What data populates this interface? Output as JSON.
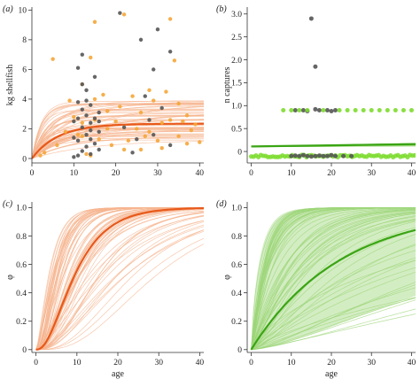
{
  "colors": {
    "orange": "#e8591a",
    "orange_light": "#f6b48f",
    "orange_point": "#f5a638",
    "green": "#3aa514",
    "green_light": "#9dd67a",
    "green_point": "#7ddc2e",
    "gray_point": "#555555"
  },
  "chart_data": [
    {
      "panel": "(a)",
      "type": "scatter",
      "xlabel": "",
      "ylabel": "kg shellfish",
      "xlim": [
        0,
        41
      ],
      "ylim": [
        -0.3,
        10.2
      ],
      "xticks": [
        0,
        10,
        20,
        30,
        40
      ],
      "yticks": [
        0,
        2,
        4,
        6,
        8,
        10
      ],
      "xtick_labels": [
        "0",
        "10",
        "20",
        "30",
        "40"
      ],
      "ytick_labels": [
        "0",
        "2",
        "4",
        "6",
        "8",
        "10"
      ],
      "curve": {
        "family": "saturating",
        "asymptote": 2.35,
        "rate": 0.16,
        "asym_range": [
          1.2,
          3.9
        ],
        "rate_range": [
          0.05,
          0.45
        ],
        "n_samples": 60
      },
      "series": [
        {
          "color": "orange_point",
          "points": [
            [
              5,
              6.7
            ],
            [
              9,
              3.9
            ],
            [
              11,
              1.6
            ],
            [
              12,
              2.4
            ],
            [
              13,
              0.3
            ],
            [
              14,
              6.8
            ],
            [
              15,
              4.0
            ],
            [
              15,
              2.6
            ],
            [
              16,
              1.3
            ],
            [
              17,
              4.3
            ],
            [
              18,
              3.2
            ],
            [
              19,
              0.9
            ],
            [
              20,
              2.5
            ],
            [
              21,
              3.5
            ],
            [
              22,
              0.6
            ],
            [
              23,
              1.2
            ],
            [
              24,
              4.2
            ],
            [
              25,
              2.0
            ],
            [
              26,
              0.6
            ],
            [
              27,
              1.5
            ],
            [
              28,
              4.6
            ],
            [
              29,
              3.9
            ],
            [
              30,
              1.2
            ],
            [
              31,
              2.4
            ],
            [
              32,
              4.5
            ],
            [
              33,
              2.6
            ],
            [
              33,
              9.4
            ],
            [
              34,
              6.6
            ],
            [
              35,
              3.7
            ],
            [
              36,
              2.5
            ],
            [
              37,
              1.0
            ],
            [
              38,
              1.9
            ],
            [
              39,
              2.3
            ],
            [
              40,
              1.1
            ],
            [
              12,
              1.5
            ],
            [
              14,
              0.2
            ],
            [
              18,
              2.0
            ],
            [
              26,
              3.1
            ],
            [
              28,
              1.8
            ],
            [
              31,
              0.7
            ],
            [
              35,
              1.5
            ],
            [
              37,
              2.9
            ],
            [
              22,
              9.7
            ],
            [
              15,
              9.2
            ],
            [
              12,
              5.0
            ],
            [
              3,
              0.4
            ],
            [
              2,
              0.2
            ],
            [
              6,
              0.9
            ],
            [
              8,
              1.8
            ],
            [
              10,
              2.8
            ]
          ]
        },
        {
          "color": "gray_point",
          "points": [
            [
              10,
              2.5
            ],
            [
              11,
              6.1
            ],
            [
              11,
              3.8
            ],
            [
              11,
              1.2
            ],
            [
              11,
              0.2
            ],
            [
              12,
              5.0
            ],
            [
              12,
              3.3
            ],
            [
              12,
              2.1
            ],
            [
              12,
              0.5
            ],
            [
              13,
              4.6
            ],
            [
              13,
              2.9
            ],
            [
              13,
              1.6
            ],
            [
              13,
              0.8
            ],
            [
              14,
              3.6
            ],
            [
              14,
              2.4
            ],
            [
              14,
              1.3
            ],
            [
              14,
              0.3
            ],
            [
              15,
              5.5
            ],
            [
              15,
              2.7
            ],
            [
              15,
              1.0
            ],
            [
              16,
              3.1
            ],
            [
              16,
              1.8
            ],
            [
              16,
              0.6
            ],
            [
              10,
              1.4
            ],
            [
              10,
              0.1
            ],
            [
              12,
              7.0
            ],
            [
              13,
              3.9
            ],
            [
              14,
              1.9
            ],
            [
              11,
              2.7
            ],
            [
              16,
              2.5
            ],
            [
              21,
              9.8
            ],
            [
              26,
              8.0
            ],
            [
              29,
              6.0
            ],
            [
              33,
              7.2
            ],
            [
              30,
              8.7
            ],
            [
              25,
              1.3
            ],
            [
              27,
              4.2
            ],
            [
              29,
              1.6
            ],
            [
              31,
              3.4
            ],
            [
              33,
              0.9
            ],
            [
              22,
              2.1
            ],
            [
              24,
              0.4
            ],
            [
              28,
              2.6
            ]
          ]
        }
      ]
    },
    {
      "panel": "(b)",
      "type": "scatter",
      "xlabel": "",
      "ylabel": "n captures",
      "xlim": [
        -1,
        41
      ],
      "ylim": [
        -0.25,
        3.15
      ],
      "xticks": [
        0,
        10,
        20,
        30,
        40
      ],
      "yticks": [
        0,
        0.5,
        1,
        1.5,
        2,
        2.5,
        3
      ],
      "xtick_labels": [
        "0",
        "10",
        "20",
        "30",
        "40"
      ],
      "ytick_labels": [
        "0",
        "0.5",
        "1.0",
        "1.5",
        "2.0",
        "2.5",
        "3.0"
      ],
      "lines": [
        {
          "from": [
            0,
            0.11
          ],
          "to": [
            41,
            0.16
          ]
        }
      ],
      "band_lines": [
        {
          "x0": 0,
          "x1": 41,
          "y0": 0.1,
          "y1": 0.1,
          "spread": [
            0.02,
            0.08
          ]
        }
      ],
      "strip_green_at": [
        0.9,
        -0.1
      ],
      "series": [
        {
          "color": "gray_point",
          "points": [
            [
              15,
              2.9
            ],
            [
              16,
              1.85
            ],
            [
              11,
              0.9
            ],
            [
              13,
              0.9
            ],
            [
              14,
              0.88
            ],
            [
              16,
              0.92
            ],
            [
              17,
              0.9
            ],
            [
              19,
              0.9
            ],
            [
              20,
              0.88
            ],
            [
              21,
              0.9
            ],
            [
              10,
              -0.1
            ],
            [
              11,
              -0.09
            ],
            [
              12,
              -0.1
            ],
            [
              13,
              -0.08
            ],
            [
              14,
              -0.1
            ],
            [
              15,
              -0.11
            ],
            [
              16,
              -0.1
            ],
            [
              17,
              -0.09
            ],
            [
              18,
              -0.1
            ],
            [
              19,
              -0.1
            ],
            [
              20,
              -0.08
            ],
            [
              21,
              -0.1
            ],
            [
              23,
              -0.1
            ],
            [
              25,
              -0.1
            ]
          ]
        },
        {
          "color": "green_point",
          "points": [
            [
              8,
              0.9
            ],
            [
              10,
              0.9
            ],
            [
              12,
              0.9
            ],
            [
              14,
              0.9
            ],
            [
              18,
              0.9
            ],
            [
              22,
              0.9
            ],
            [
              24,
              0.9
            ],
            [
              26,
              0.9
            ],
            [
              28,
              0.9
            ],
            [
              30,
              0.9
            ],
            [
              32,
              0.9
            ],
            [
              34,
              0.9
            ],
            [
              36,
              0.9
            ],
            [
              38,
              0.9
            ],
            [
              40,
              0.9
            ]
          ]
        }
      ]
    },
    {
      "panel": "(c)",
      "type": "line",
      "xlabel": "age",
      "ylabel": "φ",
      "xlim": [
        -1,
        41
      ],
      "ylim": [
        -0.02,
        1.04
      ],
      "xticks": [
        0,
        10,
        20,
        30,
        40
      ],
      "yticks": [
        0,
        0.2,
        0.4,
        0.6,
        0.8,
        1.0
      ],
      "xtick_labels": [
        "0",
        "10",
        "20",
        "30",
        "40"
      ],
      "ytick_labels": [
        "0",
        "0.2",
        "0.4",
        "0.6",
        "0.8",
        "1.0"
      ],
      "curve": {
        "family": "phi",
        "k": 0.16,
        "b": 2.6,
        "k_range": [
          0.06,
          0.4
        ],
        "b_range": [
          1.5,
          4.0
        ],
        "n_samples": 70
      }
    },
    {
      "panel": "(d)",
      "type": "line",
      "xlabel": "age",
      "ylabel": "φ",
      "xlim": [
        -1,
        41
      ],
      "ylim": [
        -0.02,
        1.04
      ],
      "xticks": [
        0,
        10,
        20,
        30,
        40
      ],
      "yticks": [
        0,
        0.2,
        0.4,
        0.6,
        0.8,
        1.0
      ],
      "xtick_labels": [
        "0",
        "10",
        "20",
        "30",
        "40"
      ],
      "ytick_labels": [
        "0",
        "0.2",
        "0.4",
        "0.6",
        "0.8",
        "1.0"
      ],
      "curve": {
        "family": "phi",
        "k": 0.045,
        "b": 1.0,
        "k_range": [
          0.008,
          0.35
        ],
        "b_range": [
          0.7,
          1.6
        ],
        "n_samples": 70
      }
    }
  ]
}
